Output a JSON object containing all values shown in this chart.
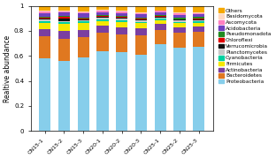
{
  "categories": [
    "CN15-1",
    "CN15-2",
    "CN15-3",
    "CN20-1",
    "CN20-2",
    "CN20-3",
    "CN25-1",
    "CN25-2",
    "CN25-3"
  ],
  "series": {
    "Proteobacteria": [
      0.58,
      0.56,
      0.59,
      0.64,
      0.63,
      0.61,
      0.695,
      0.665,
      0.67
    ],
    "Bacteroidetes": [
      0.175,
      0.175,
      0.16,
      0.145,
      0.145,
      0.155,
      0.115,
      0.12,
      0.12
    ],
    "Actinobacteria": [
      0.06,
      0.065,
      0.06,
      0.055,
      0.055,
      0.055,
      0.045,
      0.045,
      0.045
    ],
    "Firmicutes": [
      0.05,
      0.055,
      0.05,
      0.04,
      0.042,
      0.04,
      0.03,
      0.03,
      0.03
    ],
    "Cyanobacteria": [
      0.015,
      0.014,
      0.015,
      0.014,
      0.014,
      0.014,
      0.012,
      0.013,
      0.012
    ],
    "Planctomycetes": [
      0.012,
      0.011,
      0.012,
      0.011,
      0.011,
      0.011,
      0.01,
      0.01,
      0.01
    ],
    "Verrucomicrobia": [
      0.008,
      0.02,
      0.008,
      0.007,
      0.007,
      0.007,
      0.007,
      0.007,
      0.007
    ],
    "Chloroflexi": [
      0.006,
      0.01,
      0.006,
      0.006,
      0.006,
      0.006,
      0.005,
      0.005,
      0.005
    ],
    "Pseudomonadota": [
      0.008,
      0.008,
      0.008,
      0.01,
      0.012,
      0.01,
      0.01,
      0.012,
      0.012
    ],
    "Acidobacteria": [
      0.03,
      0.028,
      0.03,
      0.022,
      0.022,
      0.025,
      0.02,
      0.022,
      0.022
    ],
    "Ascomycota": [
      0.01,
      0.01,
      0.01,
      0.01,
      0.01,
      0.01,
      0.01,
      0.01,
      0.01
    ],
    "Basidomycota": [
      0.006,
      0.006,
      0.006,
      0.006,
      0.006,
      0.006,
      0.006,
      0.006,
      0.006
    ],
    "Others": [
      0.04,
      0.038,
      0.045,
      0.034,
      0.04,
      0.061,
      0.035,
      0.055,
      0.051
    ]
  },
  "colors": {
    "Proteobacteria": "#87CEEB",
    "Bacteroidetes": "#E07820",
    "Actinobacteria": "#7B3FA0",
    "Firmicutes": "#F5E800",
    "Cyanobacteria": "#00D0A0",
    "Planctomycetes": "#C8C8C8",
    "Verrucomicrobia": "#101010",
    "Chloroflexi": "#E00000",
    "Pseudomonadota": "#228B22",
    "Acidobacteria": "#7040C0",
    "Ascomycota": "#FF80C0",
    "Basidomycota": "#FFD8C0",
    "Others": "#F5A800"
  },
  "ylabel": "Realtive abundance",
  "ylim": [
    0,
    1
  ],
  "yticks": [
    0,
    0.2,
    0.4,
    0.6,
    0.8,
    1
  ],
  "bar_width": 0.6,
  "figsize": [
    3.12,
    1.8
  ],
  "dpi": 100
}
